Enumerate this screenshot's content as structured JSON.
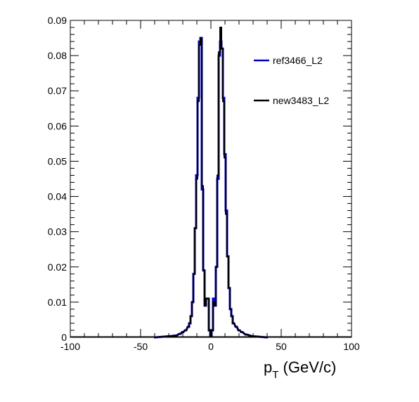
{
  "chart_data": {
    "type": "line",
    "title": "",
    "xlabel": "p_T (GeV/c)",
    "xlabel_main": "p",
    "xlabel_sub": "T",
    "xlabel_rest": " (GeV/c)",
    "ylabel": "",
    "xlim": [
      -100,
      100
    ],
    "ylim": [
      0,
      0.09
    ],
    "xticks": [
      -100,
      -50,
      0,
      50,
      100
    ],
    "yticks": [
      0,
      0.01,
      0.02,
      0.03,
      0.04,
      0.05,
      0.06,
      0.07,
      0.08,
      0.09
    ],
    "xtick_labels": [
      "-100",
      "-50",
      "0",
      "50",
      "100"
    ],
    "ytick_labels": [
      "0",
      "0.01",
      "0.02",
      "0.03",
      "0.04",
      "0.05",
      "0.06",
      "0.07",
      "0.08",
      "0.09"
    ],
    "grid": false,
    "legend_position": "top-right",
    "bin_width": 1,
    "series": [
      {
        "name": "ref3466_L2",
        "color": "#0000cc",
        "x": [
          -40,
          -30,
          -25,
          -22,
          -20,
          -18,
          -16,
          -15,
          -14,
          -13,
          -12,
          -11,
          -10,
          -9,
          -8,
          -7,
          -6,
          -5,
          -4,
          -3,
          -2,
          -1,
          0,
          1,
          2,
          3,
          4,
          5,
          6,
          7,
          8,
          9,
          10,
          11,
          12,
          13,
          14,
          15,
          16,
          18,
          20,
          22,
          25,
          30,
          40
        ],
        "values": [
          0,
          0.0003,
          0.0005,
          0.001,
          0.0015,
          0.002,
          0.003,
          0.004,
          0.006,
          0.01,
          0.018,
          0.031,
          0.046,
          0.068,
          0.084,
          0.085,
          0.042,
          0.019,
          0.009,
          0.011,
          0.011,
          0.002,
          0.0005,
          0.002,
          0.011,
          0.009,
          0.02,
          0.045,
          0.08,
          0.084,
          0.082,
          0.068,
          0.052,
          0.036,
          0.023,
          0.014,
          0.008,
          0.006,
          0.004,
          0.003,
          0.002,
          0.0015,
          0.0008,
          0.0003,
          0
        ]
      },
      {
        "name": "new3483_L2",
        "color": "#000000",
        "x": [
          -40,
          -30,
          -25,
          -22,
          -20,
          -18,
          -16,
          -15,
          -14,
          -13,
          -12,
          -11,
          -10,
          -9,
          -8,
          -7,
          -6,
          -5,
          -4,
          -3,
          -2,
          -1,
          0,
          1,
          2,
          3,
          4,
          5,
          6,
          7,
          8,
          9,
          10,
          11,
          12,
          13,
          14,
          15,
          16,
          18,
          20,
          22,
          25,
          30,
          40
        ],
        "values": [
          0,
          0.0003,
          0.0005,
          0.001,
          0.0015,
          0.002,
          0.003,
          0.004,
          0.006,
          0.01,
          0.018,
          0.031,
          0.045,
          0.067,
          0.083,
          0.085,
          0.043,
          0.019,
          0.009,
          0.011,
          0.011,
          0.002,
          0.0005,
          0.002,
          0.01,
          0.009,
          0.02,
          0.046,
          0.081,
          0.088,
          0.082,
          0.067,
          0.051,
          0.035,
          0.023,
          0.014,
          0.008,
          0.006,
          0.004,
          0.003,
          0.002,
          0.0015,
          0.0008,
          0.0003,
          0
        ]
      }
    ]
  }
}
